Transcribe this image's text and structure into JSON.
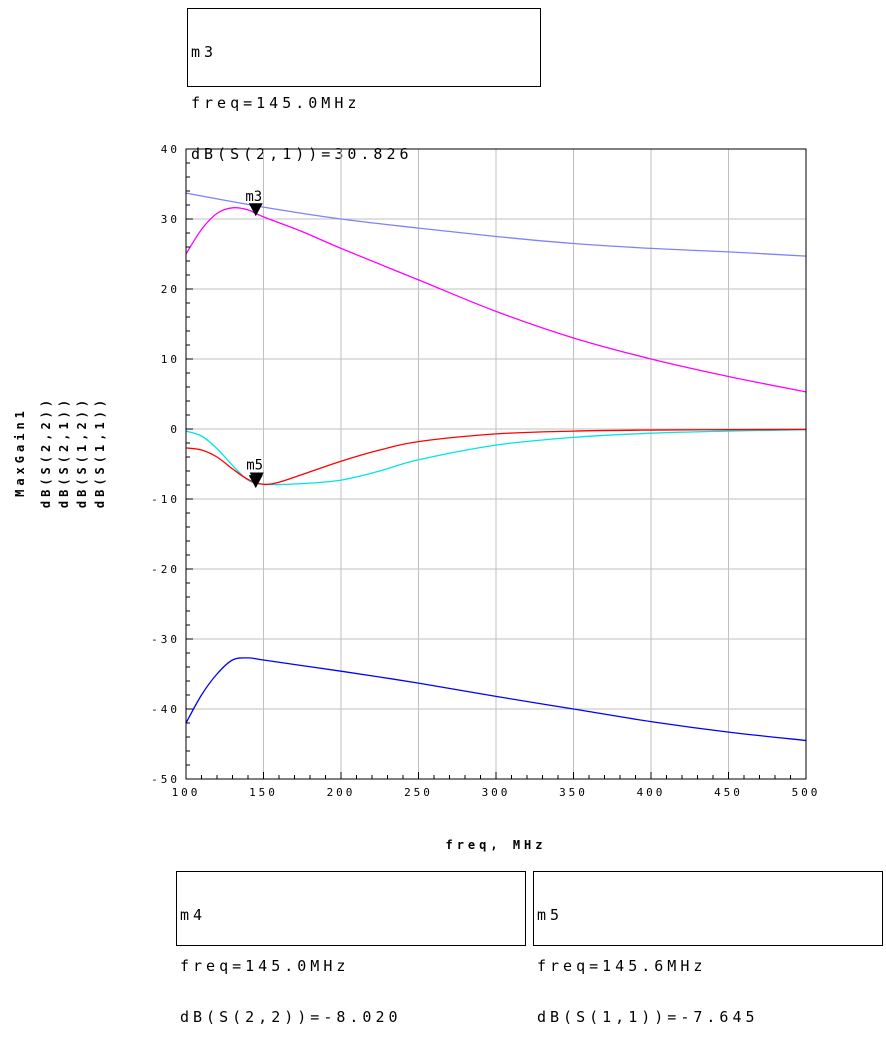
{
  "chart_data": {
    "type": "line",
    "xlabel": "freq, MHz",
    "xlim": [
      100,
      500
    ],
    "ylim": [
      -50,
      40
    ],
    "xticks": [
      100,
      150,
      200,
      250,
      300,
      350,
      400,
      450,
      500
    ],
    "yticks": [
      -50,
      -40,
      -30,
      -20,
      -10,
      0,
      10,
      20,
      30,
      40
    ],
    "grid": true,
    "y_legend": [
      {
        "text": "MaxGain1",
        "color": "#8080ff"
      },
      {
        "text": "dB(S(2,2))",
        "color": "#00e5e5"
      },
      {
        "text": "dB(S(2,1))",
        "color": "#ff00ff"
      },
      {
        "text": "dB(S(1,2))",
        "color": "#0000ff"
      },
      {
        "text": "dB(S(1,1))",
        "color": "#ff0000"
      }
    ],
    "series": [
      {
        "name": "MaxGain1",
        "color": "#8080ff",
        "x": [
          100,
          150,
          200,
          250,
          300,
          350,
          400,
          450,
          500
        ],
        "y": [
          33.7,
          31.7,
          30.0,
          28.7,
          27.5,
          26.5,
          25.8,
          25.3,
          24.7
        ]
      },
      {
        "name": "dB(S(2,1))",
        "color": "#ff00ff",
        "x": [
          100,
          110,
          120,
          130,
          140,
          150,
          175,
          200,
          250,
          300,
          350,
          400,
          450,
          500
        ],
        "y": [
          25.0,
          28.5,
          30.8,
          31.6,
          31.3,
          30.3,
          28.2,
          25.8,
          21.3,
          16.8,
          13.0,
          10.0,
          7.5,
          5.3
        ]
      },
      {
        "name": "dB(S(2,2))",
        "color": "#00e5e5",
        "x": [
          100,
          110,
          120,
          130,
          140,
          150,
          175,
          200,
          225,
          250,
          300,
          350,
          400,
          450,
          500
        ],
        "y": [
          -0.3,
          -1.0,
          -2.8,
          -5.2,
          -7.3,
          -7.9,
          -7.8,
          -7.3,
          -6.0,
          -4.4,
          -2.3,
          -1.2,
          -0.6,
          -0.3,
          -0.1
        ]
      },
      {
        "name": "dB(S(1,1))",
        "color": "#ff0000",
        "x": [
          100,
          110,
          120,
          130,
          140,
          150,
          160,
          175,
          200,
          225,
          250,
          300,
          350,
          400,
          450,
          500
        ],
        "y": [
          -2.7,
          -3.0,
          -4.0,
          -5.7,
          -7.2,
          -7.9,
          -7.6,
          -6.5,
          -4.6,
          -3.0,
          -1.8,
          -0.7,
          -0.3,
          -0.15,
          -0.1,
          -0.05
        ]
      },
      {
        "name": "dB(S(1,2))",
        "color": "#0000ff",
        "x": [
          100,
          110,
          120,
          130,
          140,
          150,
          175,
          200,
          250,
          300,
          350,
          400,
          450,
          500
        ],
        "y": [
          -42.0,
          -38.0,
          -35.0,
          -33.0,
          -32.7,
          -33.0,
          -33.8,
          -34.6,
          -36.3,
          -38.2,
          -40.0,
          -41.8,
          -43.3,
          -44.5
        ]
      }
    ],
    "markers": [
      {
        "name": "m3",
        "x": 145.0,
        "y": 30.826
      },
      {
        "name": "m4",
        "x": 145.0,
        "y": -8.02
      },
      {
        "name": "m5",
        "x": 145.6,
        "y": -7.645
      }
    ]
  },
  "marker_boxes": {
    "m3": {
      "title": "m3",
      "line1": "freq=145.0MHz",
      "line2": "dB(S(2,1))=30.826"
    },
    "m4": {
      "title": "m4",
      "line1": "freq=145.0MHz",
      "line2": "dB(S(2,2))=-8.020"
    },
    "m5": {
      "title": "m5",
      "line1": "freq=145.6MHz",
      "line2": "dB(S(1,1))=-7.645"
    }
  },
  "plot_marker_labels": {
    "m3": "m3",
    "m45": "m5"
  }
}
